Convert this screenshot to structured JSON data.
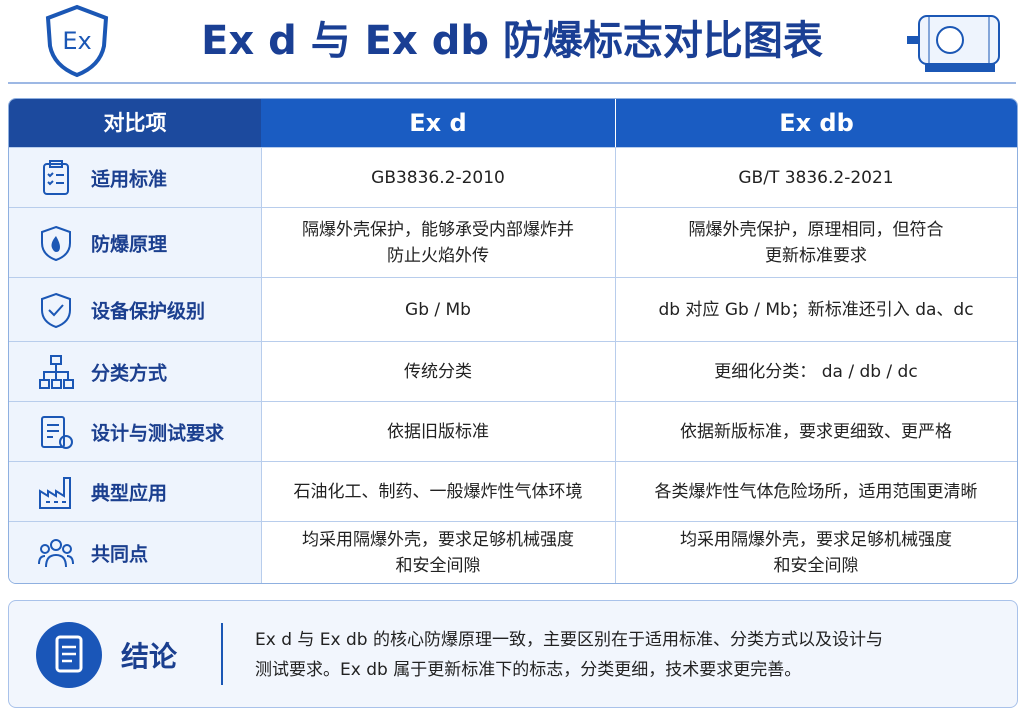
{
  "header": {
    "logo": "Ex",
    "title": "Ex d 与 Ex db 防爆标志对比图表"
  },
  "table": {
    "columns": [
      "对比项",
      "Ex d",
      "Ex db"
    ],
    "rows": [
      {
        "label": "适用标准",
        "ex_d": [
          "GB3836.2-2010"
        ],
        "ex_db": [
          "GB/T 3836.2-2021"
        ]
      },
      {
        "label": "防爆原理",
        "ex_d": [
          "隔爆外壳保护，能够承受内部爆炸并",
          "防止火焰外传"
        ],
        "ex_db": [
          "隔爆外壳保护，原理相同，但符合",
          "更新标准要求"
        ]
      },
      {
        "label": "设备保护级别",
        "ex_d": [
          "Gb / Mb"
        ],
        "ex_db": [
          "db 对应 Gb / Mb；新标准还引入 da、dc"
        ]
      },
      {
        "label": "分类方式",
        "ex_d": [
          "传统分类"
        ],
        "ex_db": [
          "更细化分类： da / db / dc"
        ]
      },
      {
        "label": "设计与测试要求",
        "ex_d": [
          "依据旧版标准"
        ],
        "ex_db": [
          "依据新版标准，要求更细致、更严格"
        ]
      },
      {
        "label": "典型应用",
        "ex_d": [
          "石油化工、制药、一般爆炸性气体环境"
        ],
        "ex_db": [
          "各类爆炸性气体危险场所，适用范围更清晰"
        ]
      },
      {
        "label": "共同点",
        "ex_d": [
          "均采用隔爆外壳，要求足够机械强度",
          "和安全间隙"
        ],
        "ex_db": [
          "均采用隔爆外壳，要求足够机械强度",
          "和安全间隙"
        ]
      }
    ]
  },
  "conclusion": {
    "label": "结论",
    "lines": [
      "Ex d 与 Ex db 的核心防爆原理一致，主要区别在于适用标准、分类方式以及设计与",
      "测试要求。Ex db 属于更新标准下的标志，分类更细，技术要求更完善。"
    ]
  }
}
